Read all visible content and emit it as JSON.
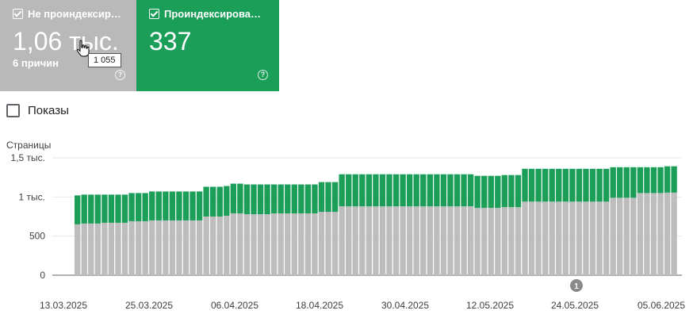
{
  "cards": {
    "not_indexed": {
      "label": "Не проиндексир…",
      "value": "1,06 тыс.",
      "sub": "6 причин",
      "checked": true,
      "color": "#b9b9b9"
    },
    "indexed": {
      "label": "Проиндексирова…",
      "value": "337",
      "checked": true,
      "color": "#1a9e58"
    }
  },
  "tooltip": "1 055",
  "impressions": {
    "label": "Показы",
    "checked": false
  },
  "chart_data": {
    "type": "bar",
    "stacked": true,
    "ylabel": "Страницы",
    "ylim": [
      0,
      1500
    ],
    "yticks": [
      0,
      500,
      1000,
      1500
    ],
    "ytick_labels": [
      "0",
      "500",
      "1 тыс.",
      "1,5 тыс."
    ],
    "xtick_labels": [
      "13.03.2025",
      "25.03.2025",
      "06.04.2025",
      "18.04.2025",
      "30.04.2025",
      "12.05.2025",
      "24.05.2025",
      "05.06.2025"
    ],
    "annotation": "1",
    "x_start": "13.03.2025",
    "x_end": "07.06.2025",
    "series": [
      {
        "name": "Не проиндексированы",
        "color": "#bdbdbd",
        "values": [
          650,
          660,
          660,
          660,
          670,
          670,
          670,
          670,
          690,
          690,
          690,
          700,
          700,
          700,
          700,
          700,
          700,
          700,
          700,
          750,
          750,
          750,
          760,
          790,
          790,
          780,
          780,
          780,
          780,
          790,
          790,
          790,
          790,
          790,
          790,
          790,
          810,
          810,
          810,
          880,
          880,
          880,
          880,
          880,
          880,
          880,
          880,
          880,
          880,
          880,
          880,
          880,
          880,
          880,
          880,
          880,
          880,
          880,
          880,
          860,
          860,
          860,
          860,
          870,
          870,
          870,
          940,
          940,
          940,
          940,
          940,
          940,
          940,
          940,
          940,
          940,
          940,
          940,
          940,
          990,
          990,
          990,
          990,
          1050,
          1050,
          1050,
          1050,
          1055,
          1055
        ]
      },
      {
        "name": "Проиндексированы",
        "color": "#1a9e58",
        "values": [
          370,
          370,
          370,
          370,
          360,
          360,
          360,
          360,
          360,
          360,
          360,
          370,
          370,
          370,
          370,
          370,
          370,
          370,
          370,
          380,
          380,
          380,
          380,
          380,
          380,
          380,
          380,
          380,
          380,
          370,
          370,
          370,
          370,
          370,
          370,
          370,
          380,
          380,
          380,
          410,
          410,
          410,
          410,
          410,
          410,
          410,
          410,
          410,
          410,
          410,
          410,
          410,
          410,
          410,
          410,
          410,
          410,
          410,
          410,
          410,
          410,
          410,
          410,
          410,
          410,
          410,
          420,
          420,
          420,
          420,
          420,
          420,
          420,
          420,
          420,
          420,
          420,
          420,
          420,
          390,
          390,
          390,
          390,
          330,
          330,
          330,
          330,
          337,
          337
        ]
      }
    ]
  }
}
